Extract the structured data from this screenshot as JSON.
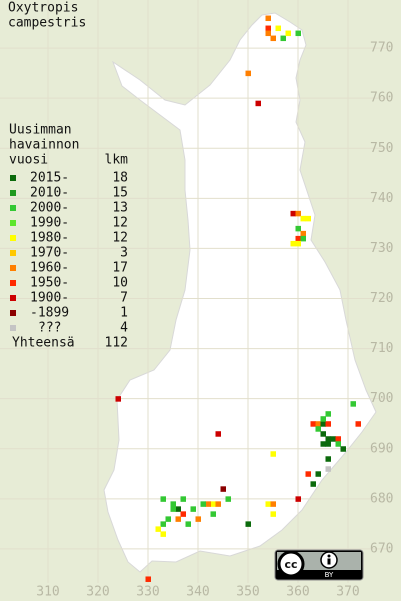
{
  "title": [
    "Oxytropis",
    "campestris"
  ],
  "legend": {
    "header": [
      "Uusimman",
      "havainnon",
      "vuosi"
    ],
    "count_header": "lkm",
    "rows": [
      {
        "label": "2015-",
        "count": 18,
        "color": "#0b6a0b"
      },
      {
        "label": "2010-",
        "count": 15,
        "color": "#1f9a1f"
      },
      {
        "label": "2000-",
        "count": 13,
        "color": "#33c833"
      },
      {
        "label": "1990-",
        "count": 12,
        "color": "#5de62a"
      },
      {
        "label": "1980-",
        "count": 12,
        "color": "#ffff00"
      },
      {
        "label": "1970-",
        "count": 3,
        "color": "#ffc800"
      },
      {
        "label": "1960-",
        "count": 17,
        "color": "#ff7f00"
      },
      {
        "label": "1950-",
        "count": 10,
        "color": "#ff2a00"
      },
      {
        "label": "1900-",
        "count": 7,
        "color": "#cc0000"
      },
      {
        "label": "-1899",
        "count": 1,
        "color": "#8b0000"
      },
      {
        "label": "???",
        "count": 4,
        "color": "#c4c4c4"
      }
    ],
    "total_label": "Yhteensä",
    "total": 112
  },
  "map": {
    "xlim": [
      300,
      380
    ],
    "ylim": [
      660,
      780
    ],
    "xticks": [
      310,
      320,
      330,
      340,
      350,
      360,
      370
    ],
    "yticks": [
      670,
      680,
      690,
      700,
      710,
      720,
      730,
      740,
      750,
      760,
      770
    ],
    "cells": [
      [
        354,
        776,
        6
      ],
      [
        354,
        774,
        7
      ],
      [
        354,
        773,
        6
      ],
      [
        356,
        774,
        4
      ],
      [
        357,
        772,
        2
      ],
      [
        358,
        773,
        4
      ],
      [
        360,
        773,
        2
      ],
      [
        355,
        772,
        6
      ],
      [
        350,
        765,
        6
      ],
      [
        352,
        759,
        8
      ],
      [
        359,
        737,
        8
      ],
      [
        360,
        737,
        6
      ],
      [
        361,
        736,
        4
      ],
      [
        362,
        736,
        4
      ],
      [
        360,
        734,
        2
      ],
      [
        361,
        733,
        6
      ],
      [
        360,
        732,
        7
      ],
      [
        361,
        732,
        2
      ],
      [
        359,
        731,
        4
      ],
      [
        360,
        731,
        4
      ],
      [
        324,
        700,
        8
      ],
      [
        344,
        693,
        8
      ],
      [
        355,
        689,
        4
      ],
      [
        363,
        695,
        7
      ],
      [
        364,
        695,
        6
      ],
      [
        365,
        695,
        0
      ],
      [
        366,
        695,
        7
      ],
      [
        364,
        694,
        2
      ],
      [
        365,
        693,
        0
      ],
      [
        366,
        692,
        0
      ],
      [
        367,
        692,
        0
      ],
      [
        368,
        692,
        7
      ],
      [
        365,
        691,
        0
      ],
      [
        366,
        691,
        0
      ],
      [
        368,
        691,
        2
      ],
      [
        369,
        690,
        0
      ],
      [
        366,
        688,
        0
      ],
      [
        372,
        695,
        7
      ],
      [
        371,
        699,
        2
      ],
      [
        366,
        697,
        2
      ],
      [
        365,
        696,
        2
      ],
      [
        366,
        686,
        10
      ],
      [
        362,
        685,
        7
      ],
      [
        363,
        683,
        0
      ],
      [
        364,
        685,
        0
      ],
      [
        360,
        680,
        8
      ],
      [
        354,
        679,
        4
      ],
      [
        355,
        679,
        6
      ],
      [
        355,
        677,
        4
      ],
      [
        350,
        675,
        0
      ],
      [
        346,
        680,
        2
      ],
      [
        345,
        682,
        9
      ],
      [
        343,
        679,
        4
      ],
      [
        344,
        679,
        6
      ],
      [
        342,
        679,
        6
      ],
      [
        343,
        677,
        2
      ],
      [
        341,
        679,
        2
      ],
      [
        339,
        678,
        2
      ],
      [
        337,
        680,
        2
      ],
      [
        333,
        680,
        2
      ],
      [
        336,
        678,
        0
      ],
      [
        337,
        677,
        7
      ],
      [
        335,
        678,
        2
      ],
      [
        336,
        676,
        6
      ],
      [
        334,
        676,
        2
      ],
      [
        333,
        675,
        2
      ],
      [
        332,
        674,
        4
      ],
      [
        333,
        673,
        4
      ],
      [
        338,
        675,
        2
      ],
      [
        330,
        664,
        7
      ],
      [
        340,
        676,
        6
      ],
      [
        335,
        679,
        2
      ]
    ]
  },
  "license": {
    "logo": "cc",
    "badge": "BY"
  }
}
